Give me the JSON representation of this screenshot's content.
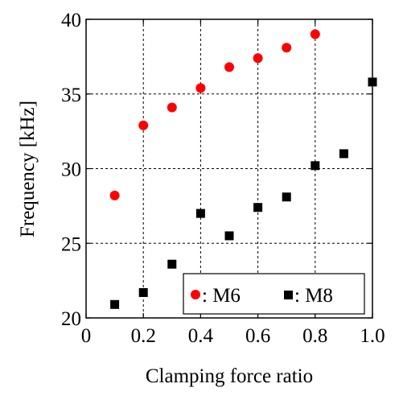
{
  "chart_data": {
    "type": "scatter",
    "xlabel": "Clamping force ratio",
    "ylabel": "Frequency [kHz]",
    "xlim": [
      0,
      1.0
    ],
    "ylim": [
      20,
      40
    ],
    "x_ticks": [
      "0",
      "0.2",
      "0.4",
      "0.6",
      "0.8",
      "1.0"
    ],
    "x_tick_values": [
      0,
      0.2,
      0.4,
      0.6,
      0.8,
      1.0
    ],
    "y_ticks": [
      "20",
      "25",
      "30",
      "35",
      "40"
    ],
    "y_tick_values": [
      20,
      25,
      30,
      35,
      40
    ],
    "grid": true,
    "legend_position": "bottom-right",
    "series": [
      {
        "name": "M6",
        "legend_label": ": M6",
        "marker": "circle",
        "color": "#ff0000",
        "x": [
          0.1,
          0.2,
          0.3,
          0.4,
          0.5,
          0.6,
          0.7,
          0.8
        ],
        "y": [
          28.2,
          32.9,
          34.1,
          35.4,
          36.8,
          37.4,
          38.1,
          39.0
        ]
      },
      {
        "name": "M8",
        "legend_label": ": M8",
        "marker": "square",
        "color": "#000000",
        "x": [
          0.1,
          0.2,
          0.3,
          0.4,
          0.5,
          0.6,
          0.7,
          0.8,
          0.9,
          1.0
        ],
        "y": [
          20.9,
          21.7,
          23.6,
          27.0,
          25.5,
          27.4,
          28.1,
          30.2,
          31.0,
          35.8
        ]
      }
    ]
  }
}
